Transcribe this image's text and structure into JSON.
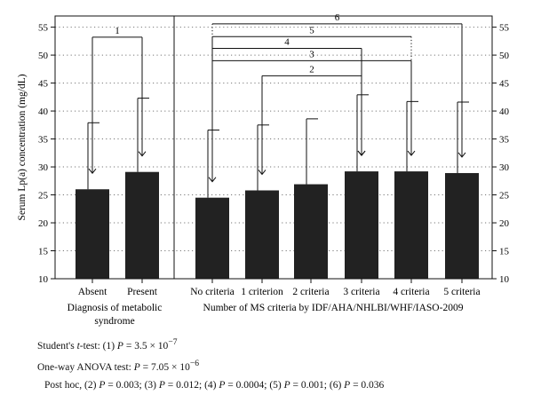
{
  "chart_data": {
    "type": "bar",
    "ylabel": "Serum Lp(a) concentration (mg/dL)",
    "ylim": [
      10,
      57
    ],
    "yticks": [
      10,
      15,
      20,
      25,
      30,
      35,
      40,
      45,
      50,
      55
    ],
    "grid": "horizontal dotted",
    "bar_color": "#222222",
    "panels": [
      {
        "xlabel": [
          "Diagnosis of metabolic",
          "syndrome"
        ],
        "categories": [
          "Absent",
          "Present"
        ],
        "values": [
          26.0,
          29.1
        ],
        "error_upper": [
          37.9,
          42.3
        ]
      },
      {
        "xlabel": [
          "Number of MS criteria by IDF/AHA/NHLBI/WHF/IASO-2009"
        ],
        "categories": [
          "No criteria",
          "1 criterion",
          "2 criteria",
          "3 criteria",
          "4 criteria",
          "5 criteria"
        ],
        "values": [
          24.5,
          25.8,
          26.9,
          29.2,
          29.2,
          28.9
        ],
        "error_upper": [
          36.6,
          37.5,
          38.6,
          42.9,
          41.7,
          41.6
        ]
      }
    ],
    "comparisons": [
      {
        "label": "1",
        "panel": 0,
        "from": 0,
        "to": 1,
        "y": 53.2
      },
      {
        "label": "2",
        "panel": 1,
        "from": 1,
        "to": 3,
        "y": 46.3
      },
      {
        "label": "3",
        "panel": 1,
        "from": 0,
        "to": 4,
        "y": 49.0
      },
      {
        "label": "4",
        "panel": 1,
        "from": 0,
        "to": 3,
        "y": 51.2
      },
      {
        "label": "5",
        "panel": 1,
        "from": 0,
        "to": 4,
        "y": 53.3
      },
      {
        "label": "6",
        "panel": 1,
        "from": 0,
        "to": 5,
        "y": 55.6
      }
    ]
  },
  "notes": {
    "ttest_prefix": "Student's ",
    "ttest_t": "t",
    "ttest_mid": "-test: (1) ",
    "p": "P",
    "ttest_value": " = 3.5 × 10",
    "ttest_exp": "−7",
    "anova_prefix": "One-way ANOVA test: ",
    "anova_value": " = 7.05 × 10",
    "anova_exp": "−6",
    "posthoc_prefix": "Post hoc, ",
    "posthoc_items": [
      {
        "n": "(2) ",
        "v": " = 0.003"
      },
      {
        "n": "(3) ",
        "v": " = 0.012"
      },
      {
        "n": "(4) ",
        "v": " = 0.0004"
      },
      {
        "n": "(5) ",
        "v": " = 0.001"
      },
      {
        "n": "(6) ",
        "v": " = 0.036"
      }
    ]
  }
}
